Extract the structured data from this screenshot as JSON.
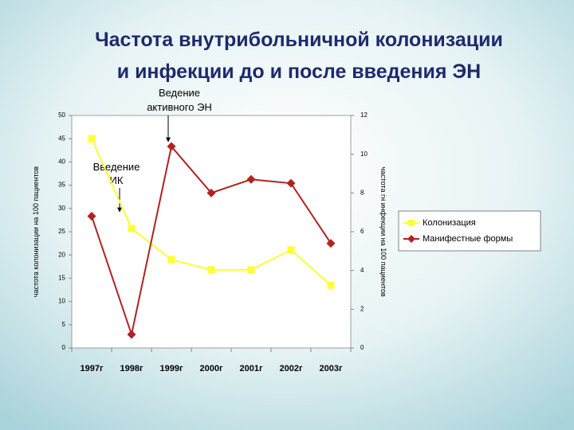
{
  "chart_data": {
    "type": "line",
    "title": [
      "Частота внутрибольничной колонизации",
      "и инфекции до и после введения ЭН"
    ],
    "y_label": "частота колонизации на 100 пациентов",
    "y2_label": "частота гн инфекции на 100 пациентов",
    "categories": [
      "1997г",
      "1998г",
      "1999г",
      "2000г",
      "2001г",
      "2002г",
      "2003г"
    ],
    "series": [
      {
        "name": "Колонизация",
        "color": "#ffff33",
        "marker": "square",
        "axis": "y",
        "values": [
          45,
          25.7,
          19,
          16.8,
          16.8,
          21.1,
          13.5
        ]
      },
      {
        "name": "Манифестные формы",
        "color": "#b22222",
        "marker": "diamond",
        "axis": "y2",
        "values": [
          6.8,
          0.7,
          10.4,
          8.0,
          8.7,
          8.5,
          5.4
        ]
      }
    ],
    "ylim": [
      0,
      50
    ],
    "yticks": [
      0,
      5,
      10,
      15,
      20,
      25,
      30,
      35,
      40,
      45,
      50
    ],
    "y2lim": [
      0,
      12
    ],
    "y2ticks": [
      0,
      2,
      4,
      6,
      8,
      10,
      12
    ],
    "legend": "right",
    "annotations": [
      {
        "lines": [
          "Ведение",
          "активного ЭН"
        ]
      },
      {
        "lines": [
          "Введение",
          "ИК"
        ]
      }
    ]
  }
}
